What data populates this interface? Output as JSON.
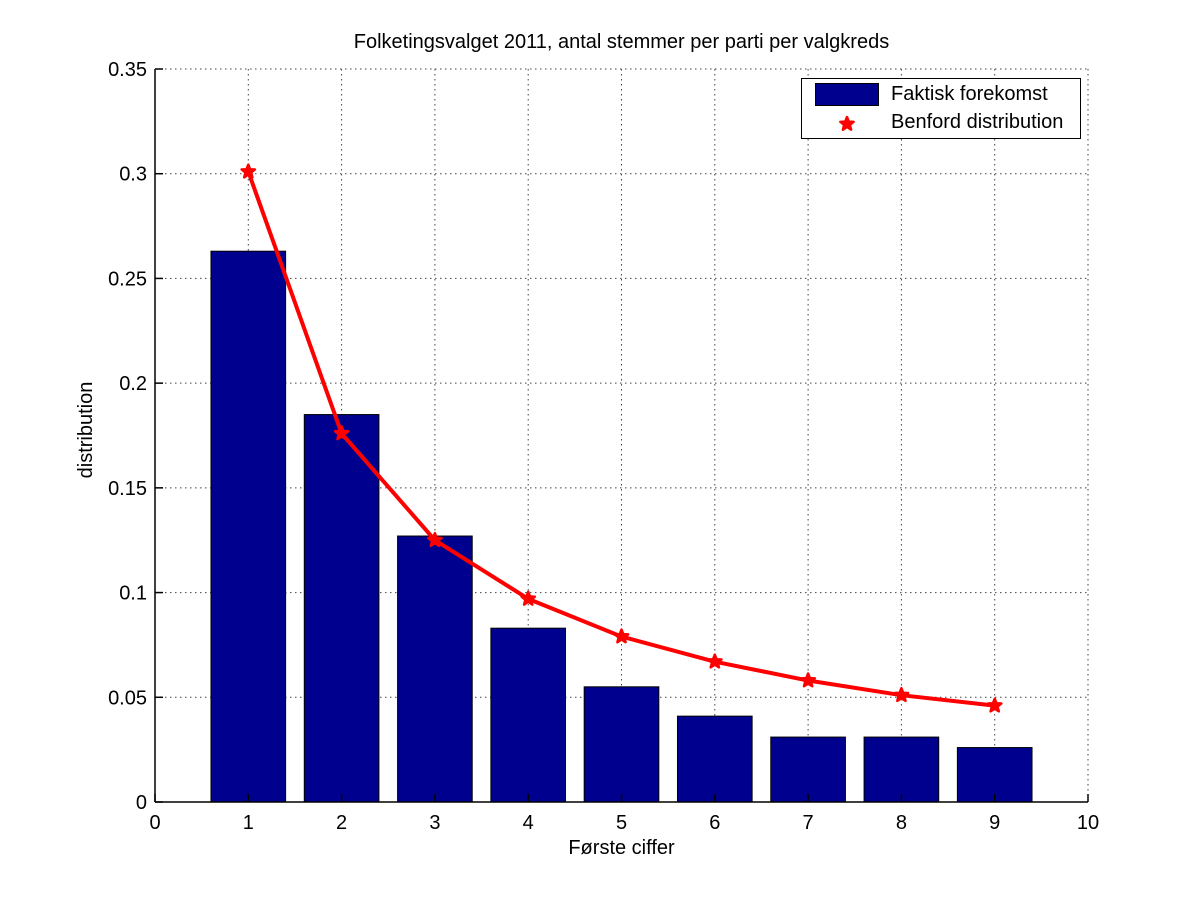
{
  "chart_data": {
    "type": "bar",
    "title": "Folketingsvalget 2011, antal stemmer per parti per valgkreds",
    "xlabel": "Første ciffer",
    "ylabel": "distribution",
    "categories": [
      1,
      2,
      3,
      4,
      5,
      6,
      7,
      8,
      9
    ],
    "series": [
      {
        "name": "Faktisk forekomst",
        "type": "bar",
        "color": "#00008F",
        "edge_color": "#000000",
        "values": [
          0.263,
          0.185,
          0.127,
          0.083,
          0.055,
          0.041,
          0.031,
          0.031,
          0.026
        ]
      },
      {
        "name": "Benford distribution",
        "type": "line",
        "color": "#FF0000",
        "marker": "pentagram",
        "values": [
          0.301,
          0.176,
          0.125,
          0.097,
          0.079,
          0.067,
          0.058,
          0.051,
          0.046
        ]
      }
    ],
    "xlim": [
      0,
      10
    ],
    "ylim": [
      0,
      0.35
    ],
    "xticks": {
      "values": [
        0,
        1,
        2,
        3,
        4,
        5,
        6,
        7,
        8,
        9,
        10
      ],
      "labels": [
        "0",
        "1",
        "2",
        "3",
        "4",
        "5",
        "6",
        "7",
        "8",
        "9",
        "10"
      ]
    },
    "yticks": {
      "values": [
        0,
        0.05,
        0.1,
        0.15,
        0.2,
        0.25,
        0.3,
        0.35
      ],
      "labels": [
        "0",
        "0.05",
        "0.1",
        "0.15",
        "0.2",
        "0.25",
        "0.3",
        "0.35"
      ]
    },
    "grid": true,
    "grid_style": "dotted",
    "bar_width": 0.8,
    "legend": {
      "position": "top-right",
      "entries": [
        "Faktisk forekomst",
        "Benford distribution"
      ]
    },
    "colors": {
      "axis": "#000000",
      "grid": "#444444",
      "background": "#FFFFFF"
    }
  }
}
